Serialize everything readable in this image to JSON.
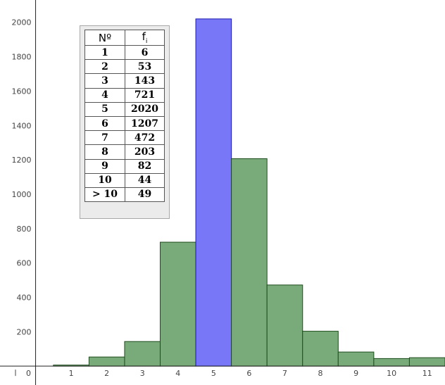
{
  "chart_data": {
    "type": "bar",
    "x_tick_labels": [
      "0",
      "1",
      "2",
      "3",
      "4",
      "5",
      "6",
      "7",
      "8",
      "9",
      "10",
      "11"
    ],
    "y_tick_labels": [
      "200",
      "400",
      "600",
      "800",
      "1000",
      "1200",
      "1400",
      "1600",
      "1800",
      "2000"
    ],
    "categories": [
      "1",
      "2",
      "3",
      "4",
      "5",
      "6",
      "7",
      "8",
      "9",
      "10",
      "> 10"
    ],
    "bar_centers": [
      1,
      2,
      3,
      4,
      5,
      6,
      7,
      8,
      9,
      10,
      11
    ],
    "values": [
      6,
      53,
      143,
      721,
      2020,
      1207,
      472,
      203,
      82,
      44,
      49
    ],
    "highlight_index": 4,
    "xlim": [
      -1,
      11.5
    ],
    "ylim": [
      -110,
      2130
    ],
    "colors": {
      "bar": "#79aa79",
      "bar_border": "#1f4d1f",
      "highlight": "#7777f8",
      "highlight_border": "#1a1ab0"
    },
    "grid": false
  },
  "table": {
    "header": {
      "n": "Nº",
      "f": "f",
      "f_sub": "i"
    },
    "rows": [
      {
        "n": "1",
        "f": "6"
      },
      {
        "n": "2",
        "f": "53"
      },
      {
        "n": "3",
        "f": "143"
      },
      {
        "n": "4",
        "f": "721"
      },
      {
        "n": "5",
        "f": "2020"
      },
      {
        "n": "6",
        "f": "1207"
      },
      {
        "n": "7",
        "f": "472"
      },
      {
        "n": "8",
        "f": "203"
      },
      {
        "n": "9",
        "f": "82"
      },
      {
        "n": "10",
        "f": "44"
      },
      {
        "n": "> 10",
        "f": "49"
      }
    ]
  }
}
